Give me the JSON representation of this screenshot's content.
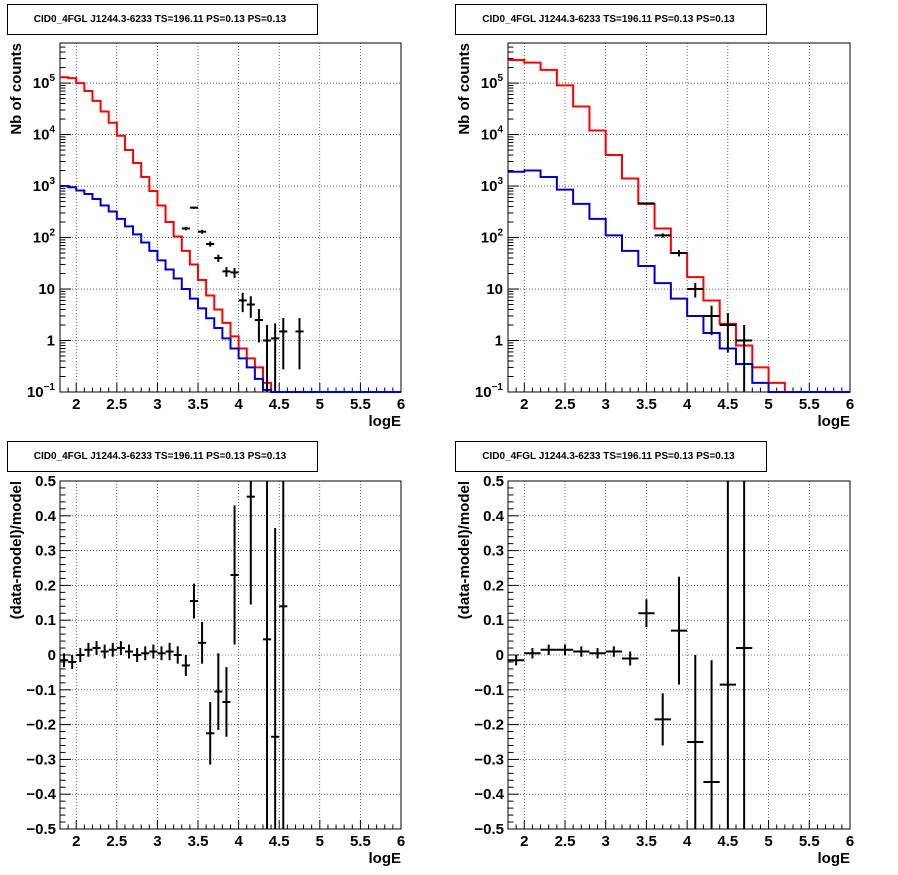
{
  "chart_data": [
    {
      "type": "line",
      "title": "CID0_4FGL J1244.3-6233 TS=196.11 PS=0.13 PS=0.13",
      "xlabel": "logE",
      "ylabel": "Nb of counts",
      "xlim": [
        1.8,
        6.0
      ],
      "ylim": [
        0.1,
        600000
      ],
      "yscale": "log",
      "grid": true,
      "x_tick_labels": [
        "2",
        "2.5",
        "3",
        "3.5",
        "4",
        "4.5",
        "5",
        "5.5",
        "6"
      ],
      "y_tick_labels": [
        "10^-1",
        "1",
        "10",
        "10^2",
        "10^3",
        "10^4",
        "10^5"
      ],
      "bin_edges": [
        1.8,
        1.9,
        2.0,
        2.1,
        2.2,
        2.3,
        2.4,
        2.5,
        2.6,
        2.7,
        2.8,
        2.9,
        3.0,
        3.1,
        3.2,
        3.3,
        3.4,
        3.5,
        3.6,
        3.7,
        3.8,
        3.9,
        4.0,
        4.1,
        4.2,
        4.3,
        4.4,
        4.5,
        4.6,
        4.7,
        4.8,
        4.9,
        5.0,
        5.1,
        5.2,
        5.3,
        5.4,
        5.5,
        5.6,
        5.7,
        5.8,
        5.9,
        6.0
      ],
      "series": [
        {
          "color": "#ff0000",
          "values": [
            130000,
            125000,
            100000,
            70000,
            45000,
            28000,
            17000,
            9500,
            5000,
            2800,
            1500,
            800,
            420,
            200,
            105,
            55,
            30,
            15,
            7.5,
            4,
            2.2,
            1.2,
            0.7,
            0.45,
            0.3,
            0.15,
            0.1,
            0.1,
            0.1,
            0.1,
            0.1,
            0.1,
            0.1,
            0.1,
            0.1,
            0.1,
            0.1,
            0.1,
            0.1,
            0.1,
            0.1,
            0.1
          ]
        },
        {
          "color": "#0000cc",
          "values": [
            1000,
            950,
            820,
            700,
            560,
            420,
            320,
            230,
            165,
            115,
            80,
            55,
            36,
            24,
            16,
            10,
            6.5,
            4.2,
            2.7,
            1.75,
            1.1,
            0.7,
            0.45,
            0.3,
            0.18,
            0.11,
            0.1,
            0.1,
            0.1,
            0.1,
            0.1,
            0.1,
            0.1,
            0.1,
            0.1,
            0.1,
            0.1,
            0.1,
            0.1,
            0.1,
            0.1,
            0.1
          ]
        }
      ],
      "data_points": [
        {
          "x": 3.35,
          "y": 150
        },
        {
          "x": 3.45,
          "y": 380
        },
        {
          "x": 3.55,
          "y": 130
        },
        {
          "x": 3.65,
          "y": 75
        },
        {
          "x": 3.75,
          "y": 40
        },
        {
          "x": 3.85,
          "y": 22
        },
        {
          "x": 3.95,
          "y": 21
        },
        {
          "x": 4.05,
          "y": 6
        },
        {
          "x": 4.15,
          "y": 5
        },
        {
          "x": 4.25,
          "y": 2.5
        },
        {
          "x": 4.35,
          "y": 1
        },
        {
          "x": 4.45,
          "y": 1.1
        },
        {
          "x": 4.55,
          "y": 1.5
        },
        {
          "x": 4.75,
          "y": 1.5
        }
      ]
    },
    {
      "type": "line",
      "title": "CID0_4FGL J1244.3-6233 TS=196.11 PS=0.13 PS=0.13",
      "xlabel": "logE",
      "ylabel": "Nb of counts",
      "xlim": [
        1.8,
        6.0
      ],
      "ylim": [
        0.1,
        600000
      ],
      "yscale": "log",
      "grid": true,
      "x_tick_labels": [
        "2",
        "2.5",
        "3",
        "3.5",
        "4",
        "4.5",
        "5",
        "5.5",
        "6"
      ],
      "y_tick_labels": [
        "10^-1",
        "1",
        "10",
        "10^2",
        "10^3",
        "10^4",
        "10^5"
      ],
      "bin_edges": [
        1.8,
        2.0,
        2.2,
        2.4,
        2.6,
        2.8,
        3.0,
        3.2,
        3.4,
        3.6,
        3.8,
        4.0,
        4.2,
        4.4,
        4.6,
        4.8,
        5.0,
        5.2,
        5.4,
        5.6,
        5.8,
        6.0
      ],
      "series": [
        {
          "color": "#ff0000",
          "values": [
            280000,
            250000,
            180000,
            90000,
            35000,
            12000,
            4000,
            1400,
            450,
            150,
            50,
            17,
            6,
            2.1,
            0.8,
            0.3,
            0.15,
            0.1,
            0.1,
            0.1,
            0.1
          ]
        },
        {
          "color": "#0000cc",
          "values": [
            1900,
            2000,
            1500,
            850,
            450,
            230,
            110,
            55,
            28,
            13,
            6.5,
            3,
            1.4,
            0.7,
            0.35,
            0.15,
            0.1,
            0.1,
            0.1,
            0.1,
            0.1
          ]
        }
      ],
      "data_points": [
        {
          "x": 3.5,
          "y": 460
        },
        {
          "x": 3.7,
          "y": 110
        },
        {
          "x": 3.9,
          "y": 50
        },
        {
          "x": 4.1,
          "y": 10
        },
        {
          "x": 4.3,
          "y": 3
        },
        {
          "x": 4.5,
          "y": 2
        },
        {
          "x": 4.7,
          "y": 1
        }
      ]
    },
    {
      "type": "scatter",
      "title": "CID0_4FGL J1244.3-6233 TS=196.11 PS=0.13 PS=0.13",
      "xlabel": "logE",
      "ylabel": "(data-model)/model",
      "xlim": [
        1.8,
        6.0
      ],
      "ylim": [
        -0.5,
        0.5
      ],
      "grid": true,
      "x_tick_labels": [
        "2",
        "2.5",
        "3",
        "3.5",
        "4",
        "4.5",
        "5",
        "5.5",
        "6"
      ],
      "y_tick_labels": [
        "−0.5",
        "−0.4",
        "−0.3",
        "−0.2",
        "−0.1",
        "0",
        "0.1",
        "0.2",
        "0.3",
        "0.4",
        "0.5"
      ],
      "points": [
        {
          "x": 1.85,
          "y": -0.015,
          "err": 0.02
        },
        {
          "x": 1.95,
          "y": -0.02,
          "err": 0.02
        },
        {
          "x": 2.05,
          "y": 0.0,
          "err": 0.02
        },
        {
          "x": 2.15,
          "y": 0.015,
          "err": 0.02
        },
        {
          "x": 2.25,
          "y": 0.02,
          "err": 0.02
        },
        {
          "x": 2.35,
          "y": 0.01,
          "err": 0.02
        },
        {
          "x": 2.45,
          "y": 0.015,
          "err": 0.02
        },
        {
          "x": 2.55,
          "y": 0.02,
          "err": 0.02
        },
        {
          "x": 2.65,
          "y": 0.01,
          "err": 0.02
        },
        {
          "x": 2.75,
          "y": 0.0,
          "err": 0.02
        },
        {
          "x": 2.85,
          "y": 0.005,
          "err": 0.02
        },
        {
          "x": 2.95,
          "y": 0.01,
          "err": 0.02
        },
        {
          "x": 3.05,
          "y": 0.005,
          "err": 0.02
        },
        {
          "x": 3.15,
          "y": 0.01,
          "err": 0.025
        },
        {
          "x": 3.25,
          "y": 0.0,
          "err": 0.025
        },
        {
          "x": 3.35,
          "y": -0.03,
          "err": 0.03
        },
        {
          "x": 3.45,
          "y": 0.155,
          "err": 0.05
        },
        {
          "x": 3.55,
          "y": 0.035,
          "err": 0.06
        },
        {
          "x": 3.65,
          "y": -0.225,
          "err": 0.09
        },
        {
          "x": 3.75,
          "y": -0.105,
          "err": 0.11
        },
        {
          "x": 3.85,
          "y": -0.135,
          "err": 0.1
        },
        {
          "x": 3.95,
          "y": 0.23,
          "err": 0.2
        },
        {
          "x": 4.15,
          "y": 0.455,
          "err": 0.31
        },
        {
          "x": 4.35,
          "y": 0.045,
          "err": 0.6
        },
        {
          "x": 4.45,
          "y": -0.235,
          "err": 0.6
        },
        {
          "x": 4.55,
          "y": 0.14,
          "err": 0.7
        }
      ]
    },
    {
      "type": "scatter",
      "title": "CID0_4FGL J1244.3-6233 TS=196.11 PS=0.13 PS=0.13",
      "xlabel": "logE",
      "ylabel": "(data-model)/model",
      "xlim": [
        1.8,
        6.0
      ],
      "ylim": [
        -0.5,
        0.5
      ],
      "grid": true,
      "x_tick_labels": [
        "2",
        "2.5",
        "3",
        "3.5",
        "4",
        "4.5",
        "5",
        "5.5",
        "6"
      ],
      "y_tick_labels": [
        "−0.5",
        "−0.4",
        "−0.3",
        "−0.2",
        "−0.1",
        "0",
        "0.1",
        "0.2",
        "0.3",
        "0.4",
        "0.5"
      ],
      "points": [
        {
          "x": 1.9,
          "y": -0.015,
          "err": 0.015
        },
        {
          "x": 2.1,
          "y": 0.005,
          "err": 0.015
        },
        {
          "x": 2.3,
          "y": 0.015,
          "err": 0.015
        },
        {
          "x": 2.5,
          "y": 0.015,
          "err": 0.015
        },
        {
          "x": 2.7,
          "y": 0.01,
          "err": 0.015
        },
        {
          "x": 2.9,
          "y": 0.005,
          "err": 0.015
        },
        {
          "x": 3.1,
          "y": 0.01,
          "err": 0.015
        },
        {
          "x": 3.3,
          "y": -0.01,
          "err": 0.02
        },
        {
          "x": 3.5,
          "y": 0.12,
          "err": 0.04
        },
        {
          "x": 3.7,
          "y": -0.185,
          "err": 0.075
        },
        {
          "x": 3.9,
          "y": 0.07,
          "err": 0.155
        },
        {
          "x": 4.1,
          "y": -0.25,
          "err": 0.25
        },
        {
          "x": 4.3,
          "y": -0.365,
          "err": 0.35
        },
        {
          "x": 4.5,
          "y": -0.085,
          "err": 0.6
        },
        {
          "x": 4.7,
          "y": 0.02,
          "err": 0.7
        }
      ]
    }
  ]
}
